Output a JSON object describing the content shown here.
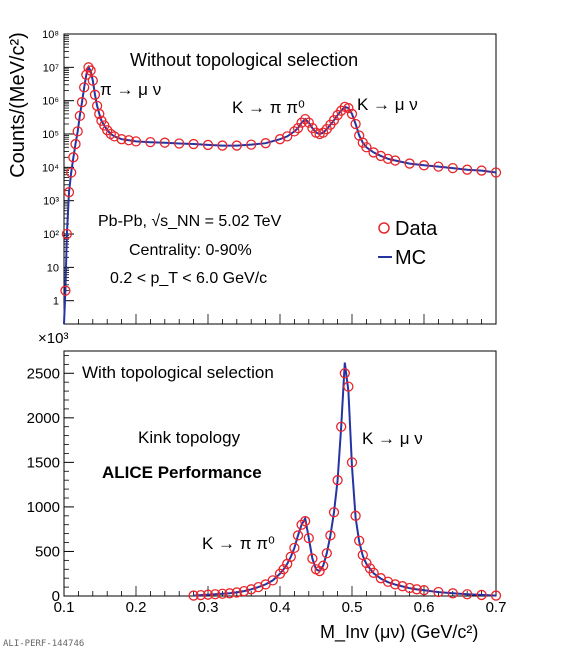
{
  "chart_data": [
    {
      "type": "scatter",
      "panel": "top",
      "yscale": "log",
      "ylabel": "Counts/(MeV/c²)",
      "ylim": [
        0.2,
        100000000
      ],
      "xlim": [
        0.1,
        0.7
      ],
      "y_tick_labels": [
        "1",
        "10",
        "10²",
        "10³",
        "10⁴",
        "10⁵",
        "10⁶",
        "10⁷",
        "10⁸"
      ],
      "annotations": {
        "title": "Without topological selection",
        "pi_decay": "π → μ ν",
        "k_pipi": "K → π π⁰",
        "k_munu": "K → μ ν",
        "collision": "Pb-Pb, √s_NN = 5.02 TeV",
        "centrality": "Centrality: 0-90%",
        "pt_range": "0.2 < p_T < 6.0 GeV/c"
      },
      "legend": {
        "placement": "right-middle",
        "entries": [
          "Data",
          "MC"
        ]
      },
      "series": [
        {
          "name": "Data",
          "marker": "open-circle",
          "color": "#e8262b",
          "x": [
            0.102,
            0.104,
            0.107,
            0.11,
            0.113,
            0.116,
            0.119,
            0.122,
            0.125,
            0.128,
            0.131,
            0.134,
            0.137,
            0.14,
            0.143,
            0.146,
            0.149,
            0.152,
            0.156,
            0.16,
            0.165,
            0.17,
            0.18,
            0.19,
            0.2,
            0.22,
            0.24,
            0.26,
            0.28,
            0.3,
            0.32,
            0.34,
            0.36,
            0.38,
            0.4,
            0.41,
            0.42,
            0.425,
            0.43,
            0.435,
            0.44,
            0.445,
            0.45,
            0.455,
            0.46,
            0.465,
            0.47,
            0.475,
            0.48,
            0.485,
            0.49,
            0.495,
            0.5,
            0.505,
            0.51,
            0.515,
            0.52,
            0.53,
            0.54,
            0.55,
            0.56,
            0.58,
            0.6,
            0.62,
            0.64,
            0.66,
            0.68,
            0.7
          ],
          "y": [
            2,
            100,
            1800,
            7000,
            20000,
            50000,
            120000,
            350000,
            900000,
            2500000,
            6000000,
            10000000,
            8000000,
            4000000,
            1500000,
            700000,
            400000,
            250000,
            180000,
            130000,
            100000,
            85000,
            70000,
            65000,
            60000,
            57000,
            55000,
            52000,
            50000,
            47000,
            45000,
            45000,
            48000,
            53000,
            70000,
            85000,
            120000,
            150000,
            220000,
            280000,
            220000,
            150000,
            110000,
            100000,
            110000,
            140000,
            190000,
            260000,
            370000,
            500000,
            650000,
            600000,
            400000,
            200000,
            90000,
            55000,
            40000,
            28000,
            22000,
            18000,
            16000,
            13000,
            11500,
            10500,
            9500,
            8500,
            8000,
            7000
          ]
        },
        {
          "name": "MC",
          "line": "solid",
          "color": "#2633a3",
          "x": [
            0.1,
            0.102,
            0.104,
            0.107,
            0.11,
            0.113,
            0.116,
            0.119,
            0.122,
            0.125,
            0.128,
            0.131,
            0.134,
            0.137,
            0.14,
            0.143,
            0.146,
            0.149,
            0.152,
            0.156,
            0.16,
            0.165,
            0.17,
            0.18,
            0.19,
            0.2,
            0.22,
            0.24,
            0.26,
            0.28,
            0.3,
            0.32,
            0.34,
            0.36,
            0.38,
            0.4,
            0.41,
            0.42,
            0.425,
            0.43,
            0.435,
            0.44,
            0.445,
            0.45,
            0.455,
            0.46,
            0.465,
            0.47,
            0.475,
            0.48,
            0.485,
            0.49,
            0.495,
            0.5,
            0.505,
            0.51,
            0.515,
            0.52,
            0.53,
            0.54,
            0.55,
            0.56,
            0.58,
            0.6,
            0.62,
            0.64,
            0.66,
            0.68,
            0.7
          ],
          "y": [
            0.2,
            2,
            100,
            1800,
            7000,
            20000,
            50000,
            120000,
            350000,
            900000,
            2500000,
            6000000,
            10000000,
            8000000,
            4000000,
            1500000,
            700000,
            400000,
            250000,
            180000,
            130000,
            100000,
            85000,
            70000,
            65000,
            60000,
            57000,
            55000,
            52000,
            50000,
            47000,
            45000,
            45000,
            48000,
            53000,
            70000,
            85000,
            120000,
            150000,
            220000,
            280000,
            220000,
            150000,
            110000,
            100000,
            110000,
            140000,
            190000,
            260000,
            370000,
            500000,
            650000,
            600000,
            400000,
            200000,
            90000,
            55000,
            40000,
            28000,
            22000,
            18000,
            16000,
            13000,
            11500,
            10500,
            9500,
            8500,
            8000,
            7000
          ]
        }
      ]
    },
    {
      "type": "scatter",
      "panel": "bottom",
      "xlabel": "M_Inv (μν) (GeV/c²)",
      "x_tick_labels": [
        "0.1",
        "0.2",
        "0.3",
        "0.4",
        "0.5",
        "0.6",
        "0.7"
      ],
      "xlim": [
        0.1,
        0.7
      ],
      "ylim": [
        0,
        2750
      ],
      "y_multiplier": "×10³",
      "y_tick_labels": [
        "0",
        "500",
        "1000",
        "1500",
        "2000",
        "2500"
      ],
      "annotations": {
        "title": "With topological selection",
        "topology": "Kink topology",
        "experiment": "ALICE Performance",
        "k_munu": "K → μ ν",
        "k_pipi": "K → π π⁰"
      },
      "series": [
        {
          "name": "Data",
          "marker": "open-circle",
          "color": "#e8262b",
          "x": [
            0.28,
            0.29,
            0.3,
            0.31,
            0.32,
            0.33,
            0.34,
            0.35,
            0.36,
            0.37,
            0.38,
            0.39,
            0.4,
            0.405,
            0.41,
            0.415,
            0.42,
            0.425,
            0.43,
            0.435,
            0.44,
            0.445,
            0.45,
            0.455,
            0.46,
            0.465,
            0.47,
            0.475,
            0.48,
            0.485,
            0.49,
            0.495,
            0.5,
            0.505,
            0.51,
            0.515,
            0.52,
            0.525,
            0.53,
            0.54,
            0.55,
            0.56,
            0.57,
            0.58,
            0.59,
            0.6,
            0.62,
            0.64,
            0.66,
            0.68,
            0.7
          ],
          "y": [
            5,
            10,
            15,
            20,
            25,
            30,
            40,
            55,
            75,
            100,
            130,
            175,
            250,
            300,
            360,
            440,
            540,
            680,
            800,
            840,
            650,
            420,
            300,
            280,
            340,
            480,
            680,
            940,
            1300,
            1900,
            2500,
            2350,
            1500,
            900,
            620,
            460,
            370,
            310,
            260,
            200,
            160,
            130,
            110,
            90,
            75,
            65,
            45,
            30,
            20,
            12,
            5
          ]
        },
        {
          "name": "MC",
          "line": "solid",
          "color": "#2633a3",
          "x": [
            0.28,
            0.29,
            0.3,
            0.31,
            0.32,
            0.33,
            0.34,
            0.35,
            0.36,
            0.37,
            0.38,
            0.39,
            0.4,
            0.405,
            0.41,
            0.415,
            0.42,
            0.425,
            0.43,
            0.435,
            0.44,
            0.445,
            0.45,
            0.455,
            0.46,
            0.465,
            0.47,
            0.475,
            0.48,
            0.485,
            0.49,
            0.495,
            0.5,
            0.505,
            0.51,
            0.515,
            0.52,
            0.525,
            0.53,
            0.54,
            0.55,
            0.56,
            0.57,
            0.58,
            0.59,
            0.6,
            0.62,
            0.64,
            0.66,
            0.68,
            0.7
          ],
          "y": [
            5,
            10,
            15,
            20,
            25,
            30,
            40,
            55,
            75,
            100,
            130,
            175,
            250,
            300,
            360,
            440,
            540,
            680,
            800,
            870,
            650,
            420,
            300,
            280,
            340,
            480,
            680,
            940,
            1300,
            1900,
            2620,
            2300,
            1450,
            880,
            610,
            450,
            360,
            305,
            255,
            195,
            155,
            128,
            108,
            88,
            74,
            64,
            44,
            30,
            20,
            12,
            5
          ]
        }
      ]
    }
  ],
  "footer": {
    "tag": "ALI-PERF-144746"
  }
}
